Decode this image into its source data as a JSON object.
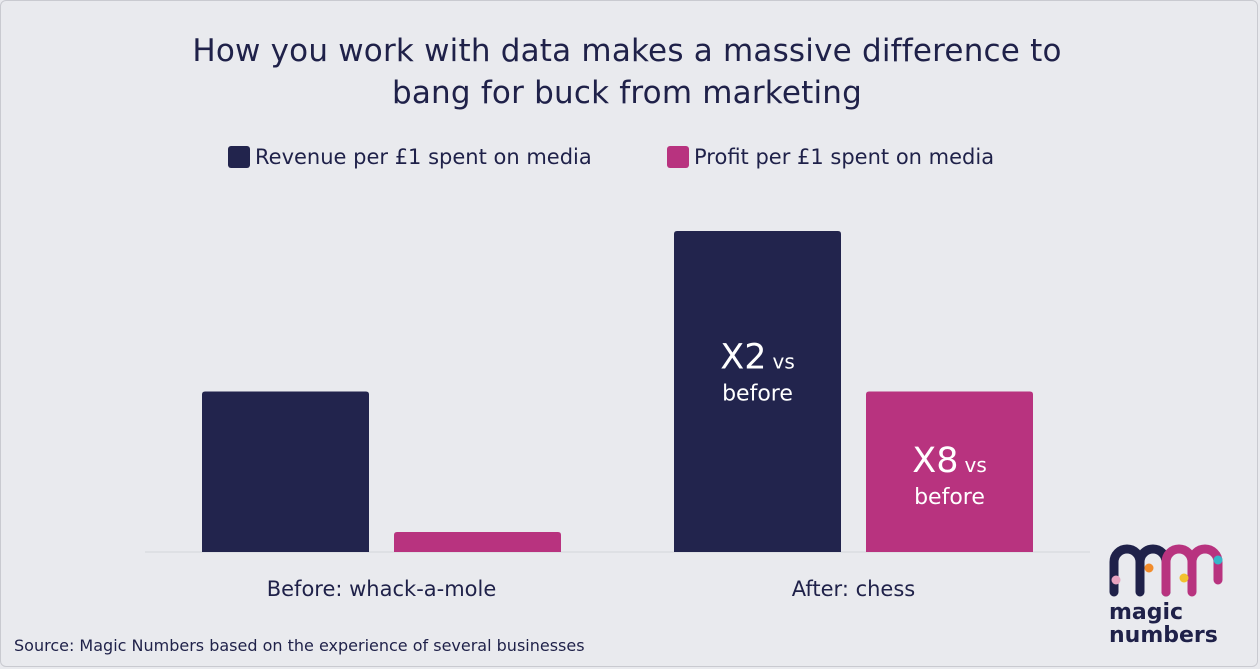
{
  "chart_data": {
    "type": "bar",
    "title": "How you work with data makes a massive difference to bang for buck from marketing",
    "categories": [
      "Before: whack-a-mole",
      "After: chess"
    ],
    "series": [
      {
        "name": "Revenue per £1 spent on media",
        "color": "#22244d",
        "values": [
          1,
          2
        ],
        "labels": [
          "",
          "X2 vs before"
        ]
      },
      {
        "name": "Profit per £1 spent on media",
        "color": "#b8337f",
        "values": [
          0.125,
          1
        ],
        "labels": [
          "",
          "X8 vs before"
        ]
      }
    ],
    "ylim": [
      0,
      2.1
    ],
    "y_axis_shown": false,
    "legend_position": "top",
    "grid": false
  },
  "title_line1": "How you work with data makes a massive difference to",
  "title_line2": "bang for buck from marketing",
  "source": "Source: Magic Numbers based on the experience of several businesses",
  "logo": {
    "line1": "magic",
    "line2": "numbers"
  }
}
